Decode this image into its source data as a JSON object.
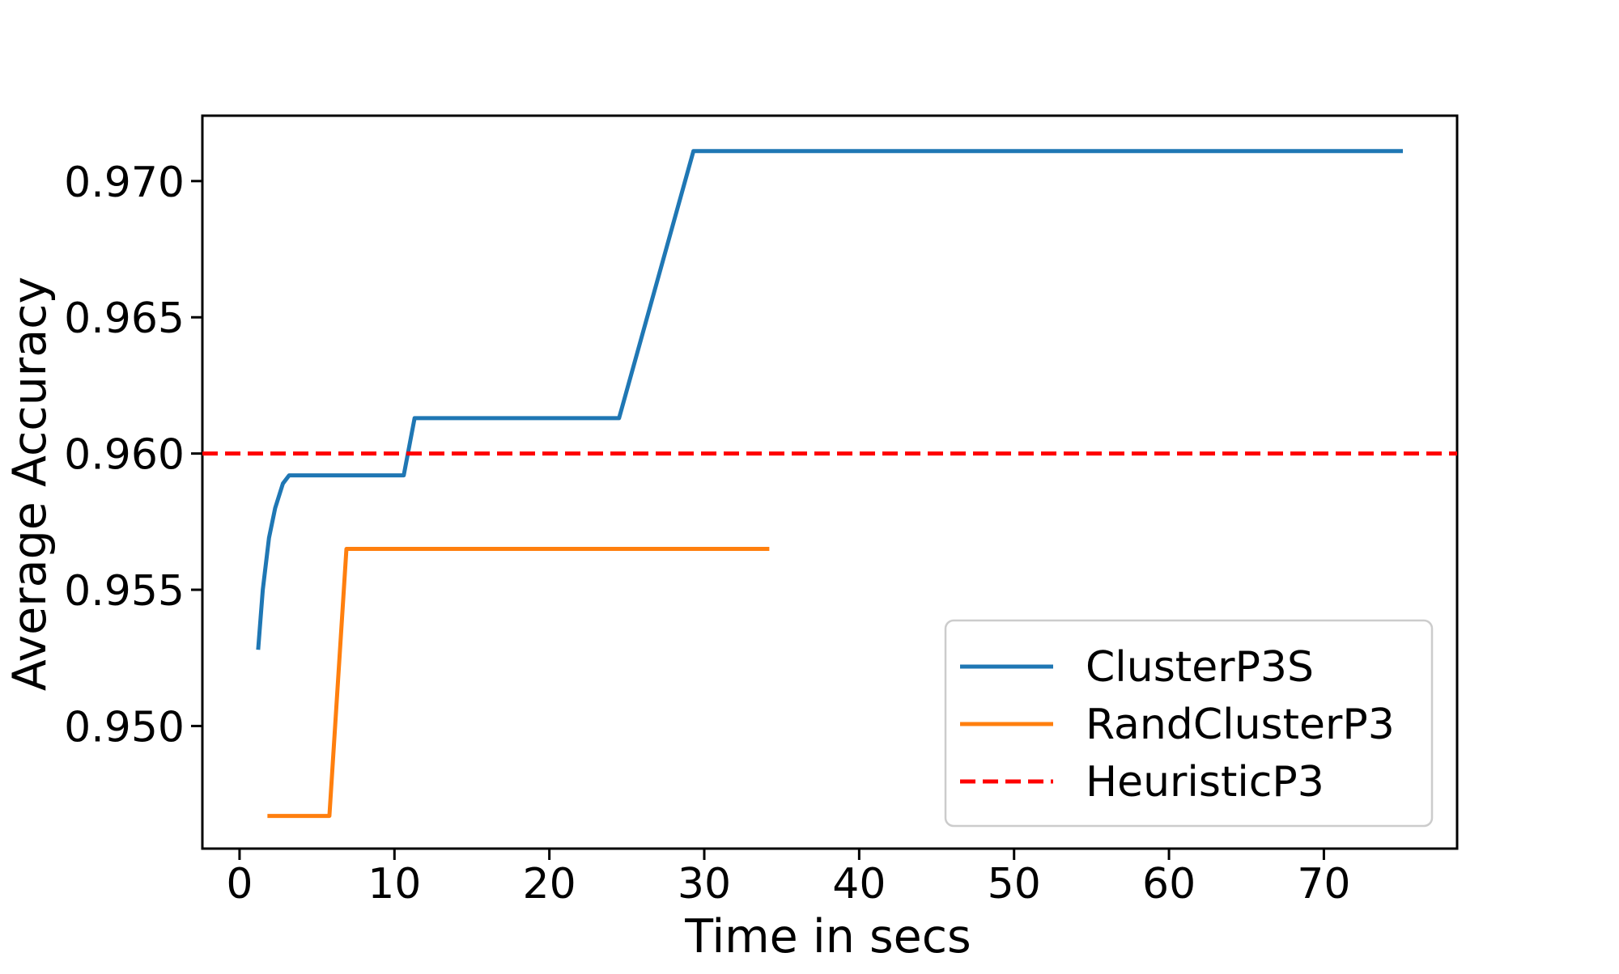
{
  "figure": {
    "background": "#ffffff"
  },
  "chart_data": {
    "type": "line",
    "title": "",
    "xlabel": "Time in secs",
    "ylabel": "Average Accuracy",
    "xlim": [
      -2.4,
      78.6
    ],
    "ylim": [
      0.9455,
      0.9724
    ],
    "xticks": [
      0,
      10,
      20,
      30,
      40,
      50,
      60,
      70
    ],
    "xtick_labels": [
      "0",
      "10",
      "20",
      "30",
      "40",
      "50",
      "60",
      "70"
    ],
    "yticks": [
      0.95,
      0.955,
      0.96,
      0.965,
      0.97
    ],
    "ytick_labels": [
      "0.950",
      "0.955",
      "0.960",
      "0.965",
      "0.970"
    ],
    "grid": false,
    "legend_position": "lower right",
    "series": [
      {
        "name": "ClusterP3S",
        "color": "#1f77b4",
        "style": "solid",
        "points": [
          [
            1.2,
            0.9528
          ],
          [
            1.5,
            0.955
          ],
          [
            1.9,
            0.9569
          ],
          [
            2.3,
            0.958
          ],
          [
            2.8,
            0.9589
          ],
          [
            3.2,
            0.9592
          ],
          [
            10.6,
            0.9592
          ],
          [
            11.3,
            0.9613
          ],
          [
            24.5,
            0.9613
          ],
          [
            29.3,
            0.9711
          ],
          [
            75.1,
            0.9711
          ]
        ]
      },
      {
        "name": "RandClusterP3",
        "color": "#ff7f0e",
        "style": "solid",
        "points": [
          [
            1.8,
            0.9467
          ],
          [
            5.8,
            0.9467
          ],
          [
            6.9,
            0.9565
          ],
          [
            34.2,
            0.9565
          ]
        ]
      },
      {
        "name": "HeuristicP3",
        "color": "#ff0000",
        "style": "dashed",
        "hline": 0.96
      }
    ]
  }
}
